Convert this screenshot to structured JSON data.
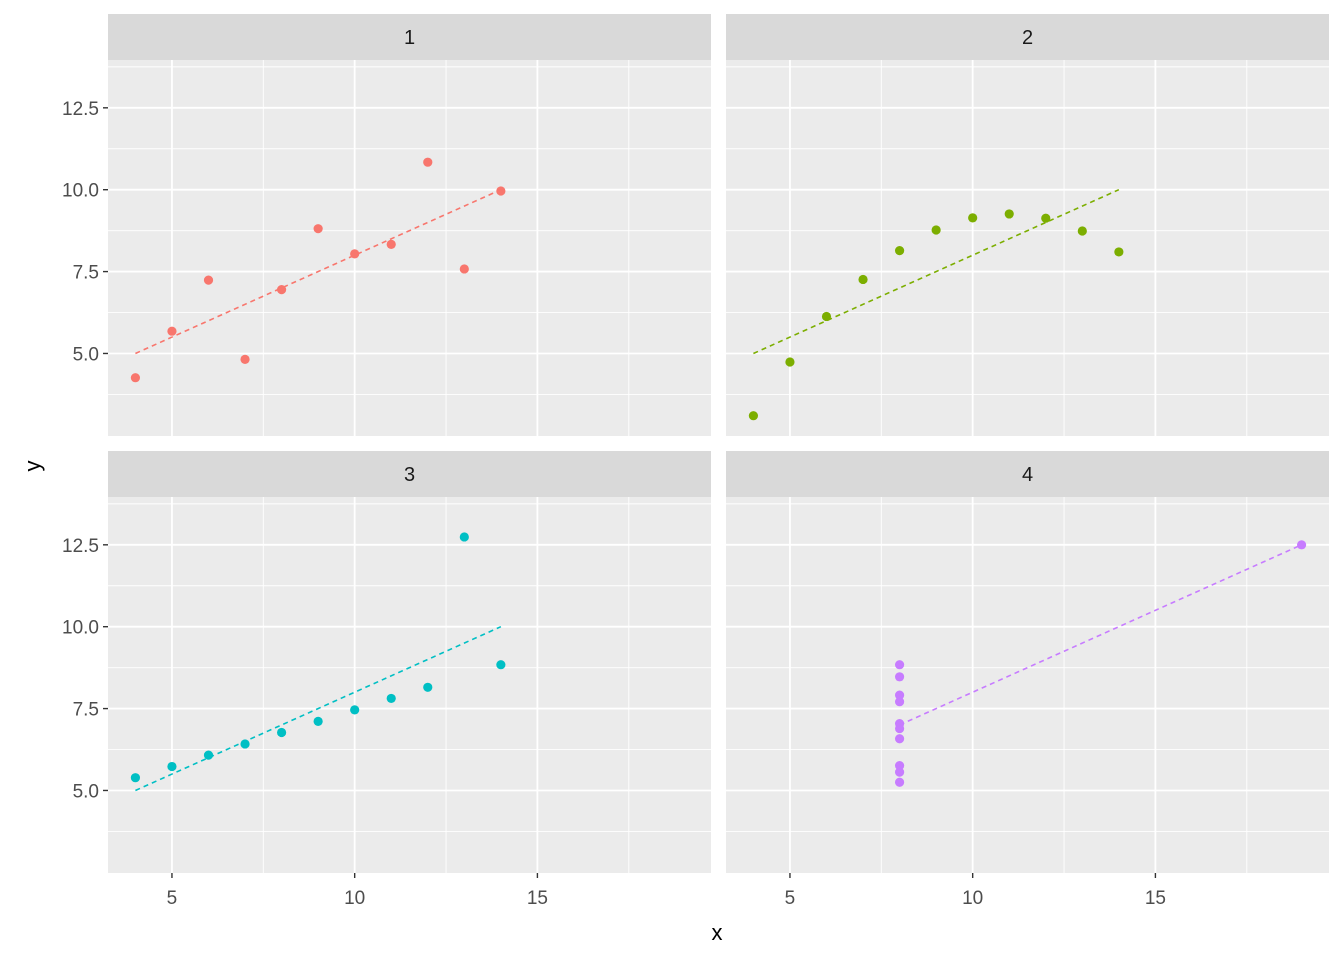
{
  "chart_data": {
    "type": "scatter",
    "layout": "facet-grid 2x2",
    "xlabel": "x",
    "ylabel": "y",
    "xlim": [
      3.25,
      19.75
    ],
    "ylim": [
      2.48,
      13.96
    ],
    "x_ticks": [
      5,
      10,
      15
    ],
    "x_tick_labels": [
      "5",
      "10",
      "15"
    ],
    "y_ticks": [
      5,
      7.5,
      10,
      12.5
    ],
    "y_tick_labels": [
      "5.0",
      "7.5",
      "10.0",
      "12.5"
    ],
    "grid": true,
    "legend": "none",
    "fit_line": {
      "style": "dashed",
      "intercept": 3.0,
      "slope": 0.5
    },
    "panels": [
      {
        "name": "1",
        "color": "#F8766D",
        "x": [
          10,
          8,
          13,
          9,
          11,
          14,
          6,
          4,
          12,
          7,
          5
        ],
        "y": [
          8.04,
          6.95,
          7.58,
          8.81,
          8.33,
          9.96,
          7.24,
          4.26,
          10.84,
          4.82,
          5.68
        ],
        "fit_x": [
          4,
          14
        ]
      },
      {
        "name": "2",
        "color": "#7CAE00",
        "x": [
          10,
          8,
          13,
          9,
          11,
          14,
          6,
          4,
          12,
          7,
          5
        ],
        "y": [
          9.14,
          8.14,
          8.74,
          8.77,
          9.26,
          8.1,
          6.13,
          3.1,
          9.13,
          7.26,
          4.74
        ],
        "fit_x": [
          4,
          14
        ]
      },
      {
        "name": "3",
        "color": "#00BFC4",
        "x": [
          10,
          8,
          13,
          9,
          11,
          14,
          6,
          4,
          12,
          7,
          5
        ],
        "y": [
          7.46,
          6.77,
          12.74,
          7.11,
          7.81,
          8.84,
          6.08,
          5.39,
          8.15,
          6.42,
          5.73
        ],
        "fit_x": [
          4,
          14
        ]
      },
      {
        "name": "4",
        "color": "#C77CFF",
        "x": [
          8,
          8,
          8,
          8,
          8,
          8,
          8,
          19,
          8,
          8,
          8
        ],
        "y": [
          6.58,
          5.76,
          7.71,
          8.84,
          8.47,
          7.04,
          5.25,
          12.5,
          5.56,
          7.91,
          6.89
        ],
        "fit_x": [
          8,
          19
        ]
      }
    ]
  }
}
